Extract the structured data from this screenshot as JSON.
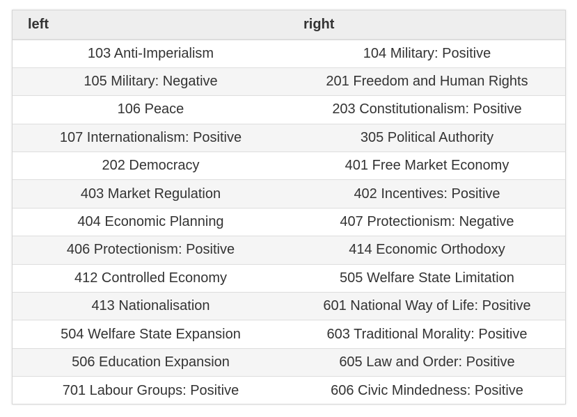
{
  "table": {
    "headers": {
      "left": "left",
      "right": "right"
    },
    "rows": [
      {
        "left": "103 Anti-Imperialism",
        "right": "104 Military: Positive"
      },
      {
        "left": "105 Military: Negative",
        "right": "201 Freedom and Human Rights"
      },
      {
        "left": "106 Peace",
        "right": "203 Constitutionalism: Positive"
      },
      {
        "left": "107 Internationalism: Positive",
        "right": "305 Political Authority"
      },
      {
        "left": "202 Democracy",
        "right": "401 Free Market Economy"
      },
      {
        "left": "403 Market Regulation",
        "right": "402 Incentives: Positive"
      },
      {
        "left": "404 Economic Planning",
        "right": "407 Protectionism: Negative"
      },
      {
        "left": "406 Protectionism: Positive",
        "right": "414 Economic Orthodoxy"
      },
      {
        "left": "412 Controlled Economy",
        "right": "505 Welfare State Limitation"
      },
      {
        "left": "413 Nationalisation",
        "right": "601 National Way of Life: Positive"
      },
      {
        "left": "504 Welfare State Expansion",
        "right": "603 Traditional Morality: Positive"
      },
      {
        "left": "506 Education Expansion",
        "right": "605 Law and Order: Positive"
      },
      {
        "left": "701 Labour Groups: Positive",
        "right": "606 Civic Mindedness: Positive"
      }
    ]
  }
}
